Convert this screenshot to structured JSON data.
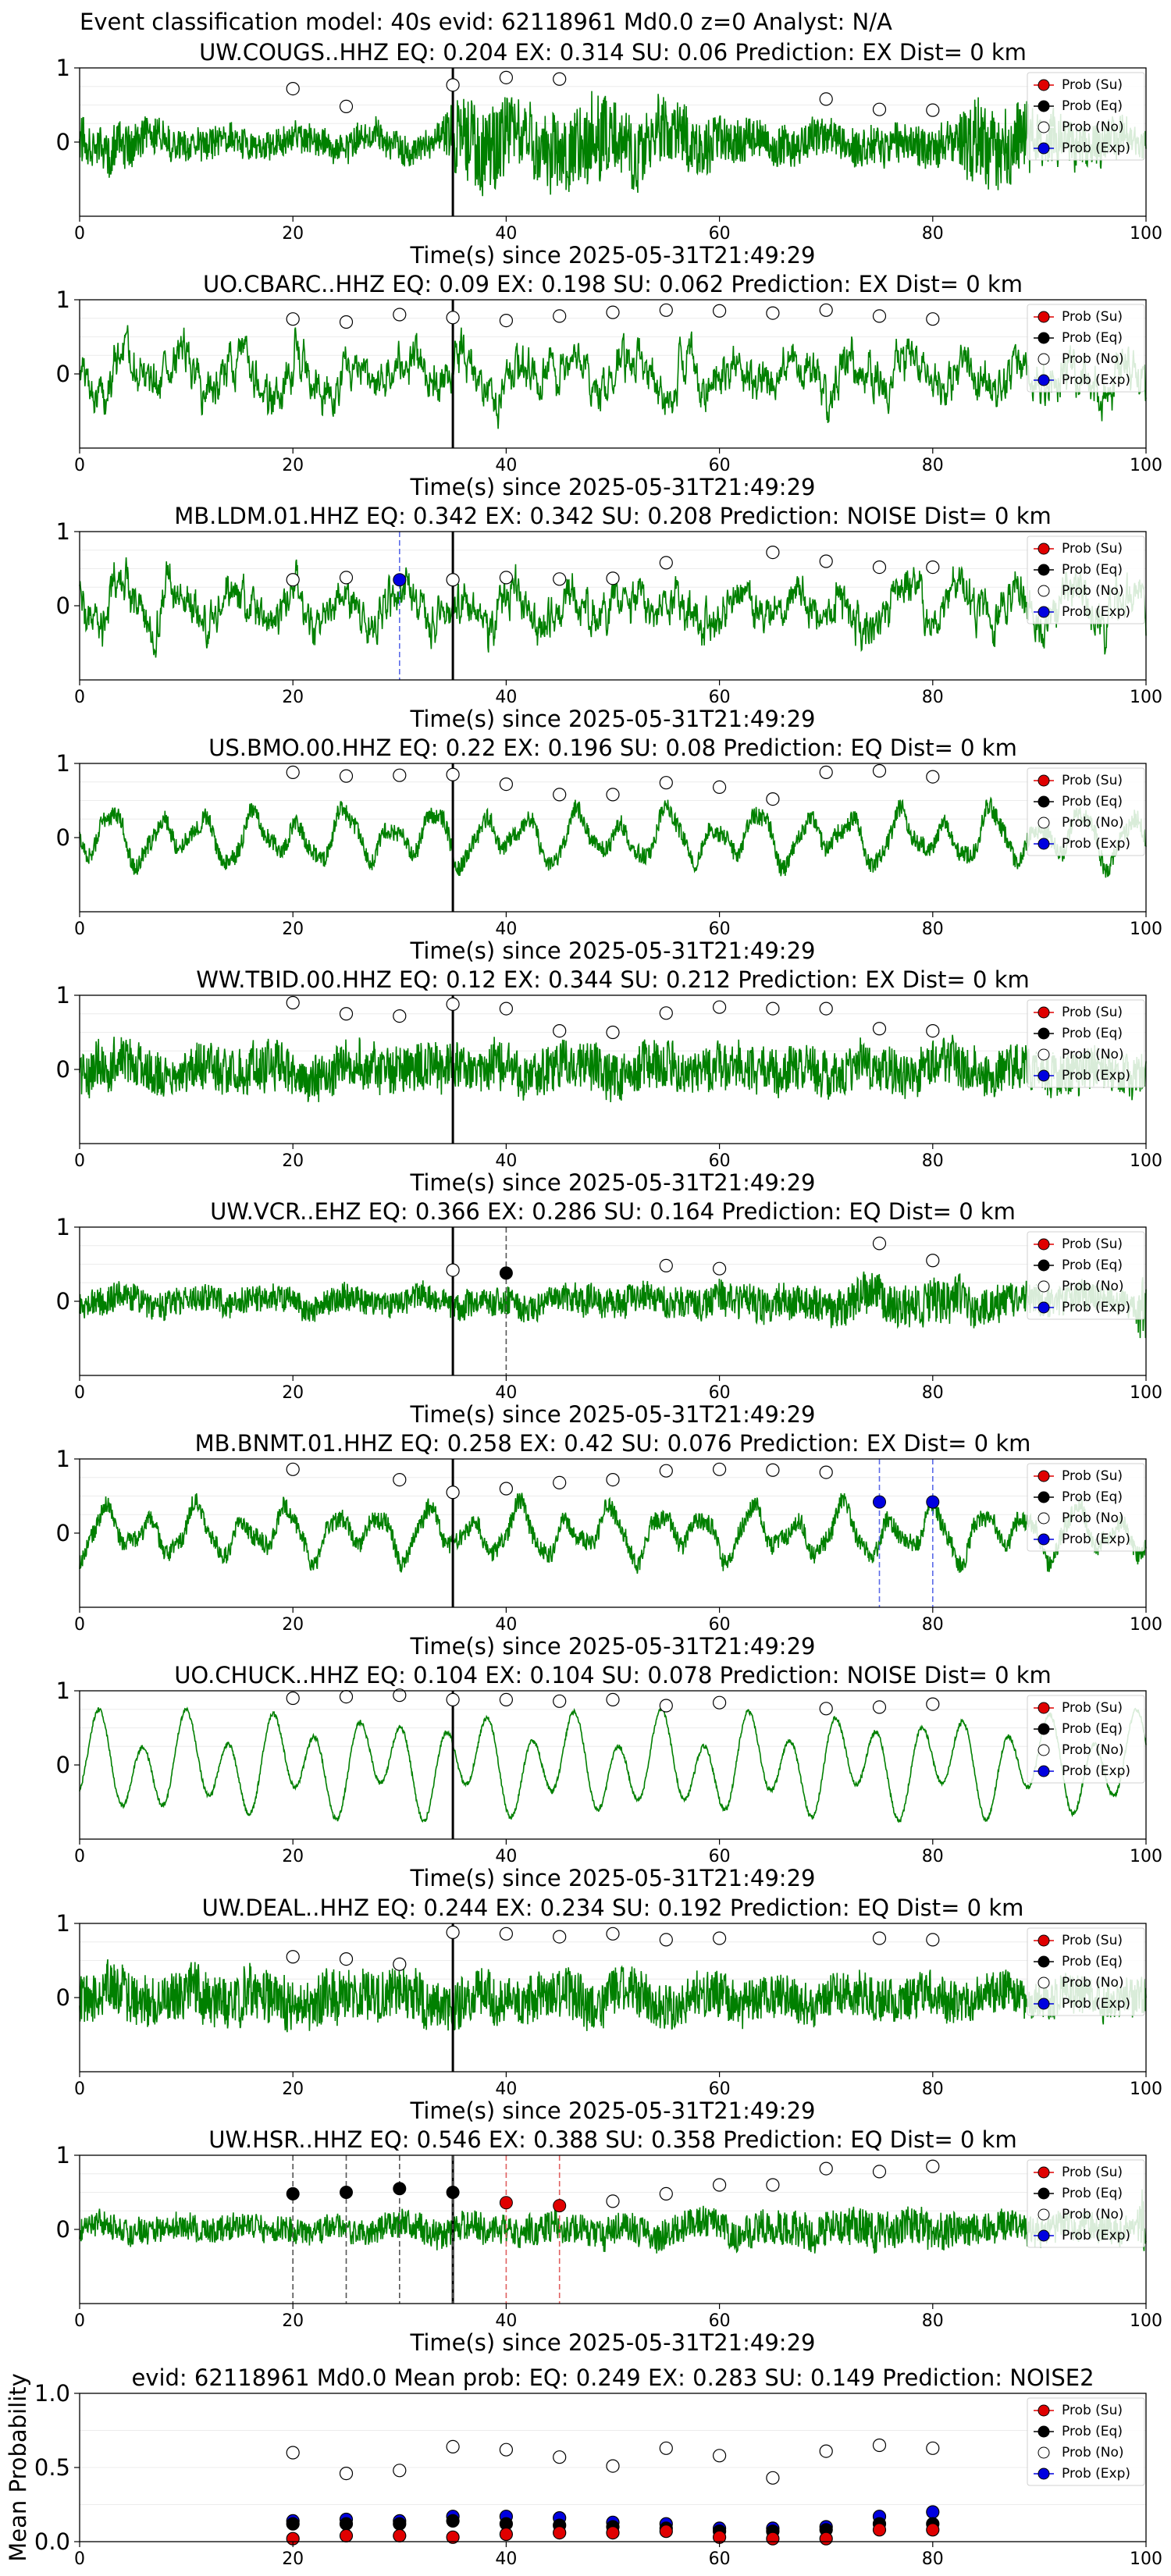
{
  "figure_title": "Event classification model: 40s evid: 62118961 Md0.0 z=0 Analyst: N/A",
  "legend": {
    "entries": [
      {
        "label": "Prob (Su)",
        "color": "#e00000",
        "filled": true
      },
      {
        "label": "Prob (Eq)",
        "color": "#000000",
        "filled": true
      },
      {
        "label": "Prob (No)",
        "color": "#ffffff",
        "filled": false
      },
      {
        "label": "Prob (Exp)",
        "color": "#0000e0",
        "filled": true
      }
    ]
  },
  "colors": {
    "waveform": "#008000",
    "su": "#e00000",
    "eq": "#000000",
    "no": "#ffffff",
    "exp": "#0000e0",
    "pick_line": "#000000"
  },
  "chart_data": [
    {
      "type": "line",
      "title": "UW.COUGS..HHZ   EQ: 0.204  EX: 0.314  SU: 0.06   Prediction: EX    Dist= 0 km",
      "xlabel": "Time(s) since 2025-05-31T21:49:29",
      "xlim": [
        0,
        100
      ],
      "ylim": [
        -1,
        1
      ],
      "xticks": [
        0,
        20,
        40,
        60,
        80,
        100
      ],
      "yticks": [
        0,
        1
      ],
      "pick_time": 35,
      "waveform_style": "dense",
      "amplitude_envelope": [
        [
          0,
          0.5
        ],
        [
          5,
          0.45
        ],
        [
          10,
          0.35
        ],
        [
          20,
          0.35
        ],
        [
          30,
          0.35
        ],
        [
          34,
          0.35
        ],
        [
          35,
          0.9
        ],
        [
          38,
          0.95
        ],
        [
          42,
          0.75
        ],
        [
          48,
          0.9
        ],
        [
          55,
          0.75
        ],
        [
          62,
          0.5
        ],
        [
          70,
          0.4
        ],
        [
          78,
          0.45
        ],
        [
          82,
          0.45
        ],
        [
          84,
          0.95
        ],
        [
          88,
          0.8
        ],
        [
          95,
          0.5
        ],
        [
          100,
          0.35
        ]
      ],
      "windows": [
        20,
        25,
        35,
        40,
        45,
        70,
        75,
        80
      ],
      "prob_no": [
        0.72,
        0.48,
        0.77,
        0.87,
        0.85,
        0.58,
        0.44,
        0.43
      ],
      "highlights": []
    },
    {
      "type": "line",
      "title": "UO.CBARC..HHZ   EQ: 0.09  EX: 0.198  SU: 0.062   Prediction: EX    Dist= 0 km",
      "xlabel": "Time(s) since 2025-05-31T21:49:29",
      "xlim": [
        0,
        100
      ],
      "ylim": [
        -1,
        1
      ],
      "xticks": [
        0,
        20,
        40,
        60,
        80,
        100
      ],
      "yticks": [
        0,
        1
      ],
      "pick_time": 35,
      "waveform_style": "medium",
      "amplitude_envelope": [
        [
          0,
          0.7
        ],
        [
          100,
          0.7
        ]
      ],
      "windows": [
        20,
        25,
        30,
        35,
        40,
        45,
        50,
        55,
        60,
        65,
        70,
        75,
        80
      ],
      "prob_no": [
        0.74,
        0.7,
        0.8,
        0.76,
        0.72,
        0.78,
        0.83,
        0.86,
        0.85,
        0.82,
        0.86,
        0.78,
        0.74
      ],
      "highlights": []
    },
    {
      "type": "line",
      "title": "MB.LDM.01.HHZ   EQ: 0.342  EX: 0.342  SU: 0.208   Prediction: NOISE    Dist= 0 km",
      "xlabel": "Time(s) since 2025-05-31T21:49:29",
      "xlim": [
        0,
        100
      ],
      "ylim": [
        -1,
        1
      ],
      "xticks": [
        0,
        20,
        40,
        60,
        80,
        100
      ],
      "yticks": [
        0,
        1
      ],
      "pick_time": 35,
      "waveform_style": "medium",
      "amplitude_envelope": [
        [
          0,
          0.7
        ],
        [
          100,
          0.7
        ]
      ],
      "windows": [
        20,
        25,
        35,
        40,
        45,
        50,
        55,
        65,
        70,
        75,
        80
      ],
      "prob_no": [
        0.35,
        0.38,
        0.35,
        0.38,
        0.36,
        0.37,
        0.58,
        0.72,
        0.6,
        0.52,
        0.52
      ],
      "highlights": [
        {
          "x": 30,
          "y": 0.35,
          "cls": "exp"
        }
      ]
    },
    {
      "type": "line",
      "title": "US.BMO.00.HHZ   EQ: 0.22  EX: 0.196  SU: 0.08   Prediction: EQ    Dist= 0 km",
      "xlabel": "Time(s) since 2025-05-31T21:49:29",
      "xlim": [
        0,
        100
      ],
      "ylim": [
        -1,
        1
      ],
      "xticks": [
        0,
        20,
        40,
        60,
        80,
        100
      ],
      "yticks": [
        0,
        1
      ],
      "pick_time": 35,
      "waveform_style": "smooth",
      "amplitude_envelope": [
        [
          0,
          0.55
        ],
        [
          100,
          0.55
        ]
      ],
      "windows": [
        20,
        25,
        30,
        35,
        40,
        45,
        50,
        55,
        60,
        65,
        70,
        75,
        80
      ],
      "prob_no": [
        0.88,
        0.83,
        0.84,
        0.85,
        0.72,
        0.58,
        0.58,
        0.74,
        0.68,
        0.52,
        0.88,
        0.9,
        0.82
      ],
      "highlights": []
    },
    {
      "type": "line",
      "title": "WW.TBID.00.HHZ   EQ: 0.12  EX: 0.344  SU: 0.212   Prediction: EX    Dist= 0 km",
      "xlabel": "Time(s) since 2025-05-31T21:49:29",
      "xlim": [
        0,
        100
      ],
      "ylim": [
        -1,
        1
      ],
      "xticks": [
        0,
        20,
        40,
        60,
        80,
        100
      ],
      "yticks": [
        0,
        1
      ],
      "pick_time": 35,
      "waveform_style": "dense",
      "amplitude_envelope": [
        [
          0,
          0.55
        ],
        [
          100,
          0.5
        ]
      ],
      "windows": [
        20,
        25,
        30,
        35,
        40,
        45,
        50,
        55,
        60,
        65,
        70,
        75,
        80
      ],
      "prob_no": [
        0.9,
        0.75,
        0.72,
        0.88,
        0.82,
        0.52,
        0.5,
        0.76,
        0.84,
        0.82,
        0.82,
        0.55,
        0.52
      ],
      "highlights": []
    },
    {
      "type": "line",
      "title": "UW.VCR..EHZ   EQ: 0.366  EX: 0.286  SU: 0.164   Prediction: EQ    Dist= 0 km",
      "xlabel": "Time(s) since 2025-05-31T21:49:29",
      "xlim": [
        0,
        100
      ],
      "ylim": [
        -1,
        1
      ],
      "xticks": [
        0,
        20,
        40,
        60,
        80,
        100
      ],
      "yticks": [
        0,
        1
      ],
      "pick_time": 35,
      "waveform_style": "dense",
      "amplitude_envelope": [
        [
          0,
          0.3
        ],
        [
          35,
          0.3
        ],
        [
          55,
          0.35
        ],
        [
          70,
          0.4
        ],
        [
          80,
          0.5
        ],
        [
          90,
          0.35
        ],
        [
          99,
          0.3
        ],
        [
          100,
          1
        ]
      ],
      "windows": [
        35,
        55,
        60,
        75,
        80
      ],
      "prob_no": [
        0.42,
        0.48,
        0.44,
        0.78,
        0.55
      ],
      "highlights": [
        {
          "x": 40,
          "y": 0.38,
          "cls": "eq"
        }
      ]
    },
    {
      "type": "line",
      "title": "MB.BNMT.01.HHZ   EQ: 0.258  EX: 0.42  SU: 0.076   Prediction: EX    Dist= 0 km",
      "xlabel": "Time(s) since 2025-05-31T21:49:29",
      "xlim": [
        0,
        100
      ],
      "ylim": [
        -1,
        1
      ],
      "xticks": [
        0,
        20,
        40,
        60,
        80,
        100
      ],
      "yticks": [
        0,
        1
      ],
      "pick_time": 35,
      "waveform_style": "smooth",
      "amplitude_envelope": [
        [
          0,
          0.55
        ],
        [
          100,
          0.55
        ]
      ],
      "windows": [
        20,
        30,
        35,
        40,
        45,
        50,
        55,
        60,
        65,
        70
      ],
      "prob_no": [
        0.86,
        0.72,
        0.55,
        0.6,
        0.68,
        0.72,
        0.84,
        0.86,
        0.85,
        0.82
      ],
      "highlights": [
        {
          "x": 75,
          "y": 0.42,
          "cls": "exp"
        },
        {
          "x": 80,
          "y": 0.42,
          "cls": "exp"
        }
      ]
    },
    {
      "type": "line",
      "title": "UO.CHUCK..HHZ   EQ: 0.104  EX: 0.104  SU: 0.078   Prediction: NOISE    Dist= 0 km",
      "xlabel": "Time(s) since 2025-05-31T21:49:29",
      "xlim": [
        0,
        100
      ],
      "ylim": [
        -1,
        1
      ],
      "xticks": [
        0,
        20,
        40,
        60,
        80,
        100
      ],
      "yticks": [
        0,
        1
      ],
      "pick_time": 35,
      "waveform_style": "clean",
      "amplitude_envelope": [
        [
          0,
          0.8
        ],
        [
          100,
          0.8
        ]
      ],
      "windows": [
        20,
        25,
        30,
        35,
        40,
        45,
        50,
        55,
        60,
        70,
        75,
        80
      ],
      "prob_no": [
        0.9,
        0.92,
        0.94,
        0.88,
        0.88,
        0.86,
        0.88,
        0.8,
        0.84,
        0.76,
        0.78,
        0.82
      ],
      "highlights": []
    },
    {
      "type": "line",
      "title": "UW.DEAL..HHZ   EQ: 0.244  EX: 0.234  SU: 0.192   Prediction: EQ    Dist= 0 km",
      "xlabel": "Time(s) since 2025-05-31T21:49:29",
      "xlim": [
        0,
        100
      ],
      "ylim": [
        -1,
        1
      ],
      "xticks": [
        0,
        20,
        40,
        60,
        80,
        100
      ],
      "yticks": [
        0,
        1
      ],
      "pick_time": 35,
      "waveform_style": "dense",
      "amplitude_envelope": [
        [
          0,
          0.55
        ],
        [
          20,
          0.6
        ],
        [
          35,
          0.55
        ],
        [
          60,
          0.5
        ],
        [
          100,
          0.45
        ]
      ],
      "windows": [
        20,
        25,
        30,
        35,
        40,
        45,
        50,
        55,
        60,
        75,
        80
      ],
      "prob_no": [
        0.55,
        0.52,
        0.45,
        0.88,
        0.86,
        0.82,
        0.86,
        0.78,
        0.8,
        0.8,
        0.78
      ],
      "highlights": []
    },
    {
      "type": "line",
      "title": "UW.HSR..HHZ   EQ: 0.546  EX: 0.388  SU: 0.358   Prediction: EQ    Dist= 0 km",
      "xlabel": "Time(s) since 2025-05-31T21:49:29",
      "xlim": [
        0,
        100
      ],
      "ylim": [
        -1,
        1
      ],
      "xticks": [
        0,
        20,
        40,
        60,
        80,
        100
      ],
      "yticks": [
        0,
        1
      ],
      "pick_time": 35,
      "waveform_style": "dense",
      "amplitude_envelope": [
        [
          0,
          0.3
        ],
        [
          30,
          0.3
        ],
        [
          35,
          0.35
        ],
        [
          60,
          0.35
        ],
        [
          75,
          0.45
        ],
        [
          90,
          0.35
        ],
        [
          99,
          0.3
        ],
        [
          100,
          1
        ]
      ],
      "windows": [
        50,
        55,
        60,
        65,
        70,
        75,
        80
      ],
      "prob_no": [
        0.38,
        0.48,
        0.6,
        0.6,
        0.82,
        0.78,
        0.85
      ],
      "highlights": [
        {
          "x": 20,
          "y": 0.48,
          "cls": "eq"
        },
        {
          "x": 25,
          "y": 0.5,
          "cls": "eq"
        },
        {
          "x": 30,
          "y": 0.55,
          "cls": "eq"
        },
        {
          "x": 35,
          "y": 0.5,
          "cls": "eq"
        },
        {
          "x": 40,
          "y": 0.36,
          "cls": "su"
        },
        {
          "x": 45,
          "y": 0.32,
          "cls": "su"
        }
      ]
    },
    {
      "type": "scatter",
      "title": "evid: 62118961  Md0.0   Mean prob:   EQ: 0.249  EX: 0.283  SU: 0.149   Prediction: NOISE2",
      "ylabel": "Mean Probability",
      "xlim": [
        0,
        100
      ],
      "ylim": [
        0,
        1
      ],
      "xticks": [
        0,
        20,
        40,
        60,
        80,
        100
      ],
      "yticks": [
        0.0,
        0.5,
        1.0
      ],
      "x": [
        20,
        25,
        30,
        35,
        40,
        45,
        50,
        55,
        60,
        65,
        70,
        75,
        80
      ],
      "series": [
        {
          "name": "Prob (Su)",
          "values": [
            0.02,
            0.04,
            0.04,
            0.03,
            0.05,
            0.06,
            0.06,
            0.07,
            0.03,
            0.02,
            0.02,
            0.08,
            0.08
          ]
        },
        {
          "name": "Prob (Eq)",
          "values": [
            0.12,
            0.12,
            0.12,
            0.14,
            0.12,
            0.11,
            0.1,
            0.09,
            0.07,
            0.07,
            0.08,
            0.12,
            0.12
          ]
        },
        {
          "name": "Prob (No)",
          "values": [
            0.6,
            0.46,
            0.48,
            0.64,
            0.62,
            0.57,
            0.51,
            0.63,
            0.58,
            0.43,
            0.61,
            0.65,
            0.63
          ]
        },
        {
          "name": "Prob (Exp)",
          "values": [
            0.14,
            0.15,
            0.14,
            0.17,
            0.17,
            0.16,
            0.13,
            0.12,
            0.09,
            0.09,
            0.1,
            0.17,
            0.2
          ]
        }
      ]
    }
  ]
}
